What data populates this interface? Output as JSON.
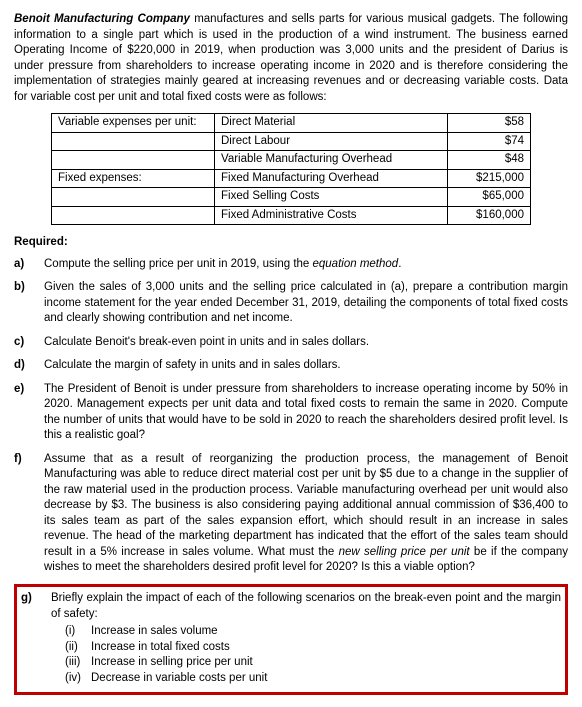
{
  "intro": {
    "company": "Benoit Manufacturing Company",
    "text_after": " manufactures and sells parts for various musical gadgets. The following information to a single part which is used in the production of a wind instrument. The business earned Operating Income of $220,000 in 2019, when production was 3,000 units and the president of Darius is under pressure from shareholders to increase operating income in 2020 and is therefore considering the implementation of strategies mainly geared at increasing revenues and or decreasing variable costs. Data for variable cost per unit and total fixed costs were as follows:"
  },
  "table": {
    "row1_label": "Variable expenses per unit:",
    "row1_desc": "Direct Material",
    "row1_amt": "$58",
    "row2_desc": "Direct Labour",
    "row2_amt": "$74",
    "row3_desc": "Variable Manufacturing Overhead",
    "row3_amt": "$48",
    "row4_label": "Fixed expenses:",
    "row4_desc": "Fixed Manufacturing Overhead",
    "row4_amt": "$215,000",
    "row5_desc": "Fixed Selling Costs",
    "row5_amt": "$65,000",
    "row6_desc": "Fixed Administrative Costs",
    "row6_amt": "$160,000"
  },
  "required_label": "Required:",
  "q": {
    "a": {
      "letter": "a)",
      "pre": "Compute the selling price per unit in 2019, using the ",
      "ital": "equation method",
      "post": "."
    },
    "b": {
      "letter": "b)",
      "text": "Given the sales of 3,000 units and the selling price calculated in (a), prepare a contribution margin income statement for the year ended December 31, 2019, detailing the components of total fixed costs and clearly showing contribution and net income."
    },
    "c": {
      "letter": "c)",
      "text": "Calculate Benoit's break-even point in units and in sales dollars."
    },
    "d": {
      "letter": "d)",
      "text": "Calculate the margin of safety in units and in sales dollars."
    },
    "e": {
      "letter": "e)",
      "text": "The President of Benoit is under pressure from shareholders to increase operating income by 50% in 2020. Management expects per unit data and total fixed costs to remain the same in 2020. Compute the number of units that would have to be sold in 2020 to reach the shareholders desired profit level. Is this a realistic goal?"
    },
    "f": {
      "letter": "f)",
      "pre": "Assume that as a result of reorganizing the production process, the management of Benoit Manufacturing was able to reduce direct material cost per unit by $5 due to a change in the supplier of the raw material used in the production process. Variable manufacturing overhead per unit would also decrease by $3. The business is also considering paying additional annual commission of $36,400 to its sales team as part of the sales expansion effort, which should result in an increase in sales revenue. The head of the marketing department has indicated that the effort of the sales team should result in a 5% increase in sales volume. What must the ",
      "ital": "new selling price per unit",
      "post": " be if the company wishes to meet the shareholders desired profit level for 2020? Is this a viable option?"
    },
    "g": {
      "letter": "g)",
      "text": "Briefly explain the impact of each of the following scenarios on the break-even point and the margin of safety:",
      "sub": {
        "i": {
          "roman": "(i)",
          "text": "Increase in sales volume"
        },
        "ii": {
          "roman": "(ii)",
          "text": "Increase in total fixed costs"
        },
        "iii": {
          "roman": "(iii)",
          "text": "Increase in selling price per unit"
        },
        "iv": {
          "roman": "(iv)",
          "text": "Decrease in variable costs per unit"
        }
      }
    }
  }
}
